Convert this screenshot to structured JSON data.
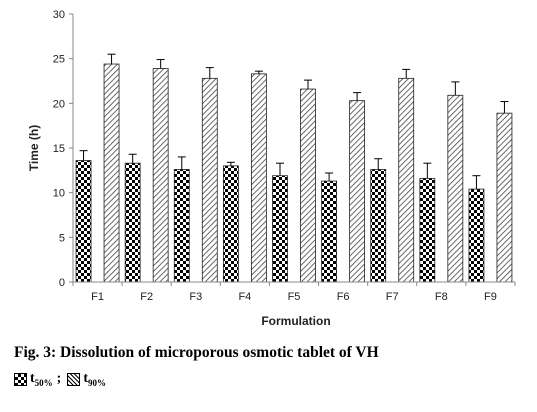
{
  "chart_data": {
    "type": "bar",
    "title": "",
    "xlabel": "Formulation",
    "ylabel": "Time (h)",
    "ylim": [
      0,
      30
    ],
    "yticks": [
      "0",
      "5",
      "10",
      "15",
      "20",
      "25",
      "30"
    ],
    "categories": [
      "F1",
      "F2",
      "F3",
      "F4",
      "F5",
      "F6",
      "F7",
      "F8",
      "F9"
    ],
    "grid": false,
    "error_bars": true,
    "series": [
      {
        "name": "t",
        "subscript": "50%",
        "pattern": "checkerboard",
        "values": [
          13.6,
          13.3,
          12.6,
          13.0,
          11.9,
          11.3,
          12.6,
          11.6,
          10.4
        ],
        "errors": [
          1.1,
          1.0,
          1.4,
          0.4,
          1.4,
          0.9,
          1.2,
          1.7,
          1.5
        ]
      },
      {
        "name": "t",
        "subscript": "90%",
        "pattern": "diagonal-hatch",
        "values": [
          24.4,
          23.9,
          22.8,
          23.3,
          21.6,
          20.3,
          22.8,
          20.9,
          18.9
        ],
        "errors": [
          1.1,
          1.0,
          1.2,
          0.3,
          1.0,
          0.9,
          1.0,
          1.5,
          1.3
        ]
      }
    ]
  },
  "caption": "Fig. 3: Dissolution of microporous osmotic tablet of VH",
  "legend_separator": ";"
}
